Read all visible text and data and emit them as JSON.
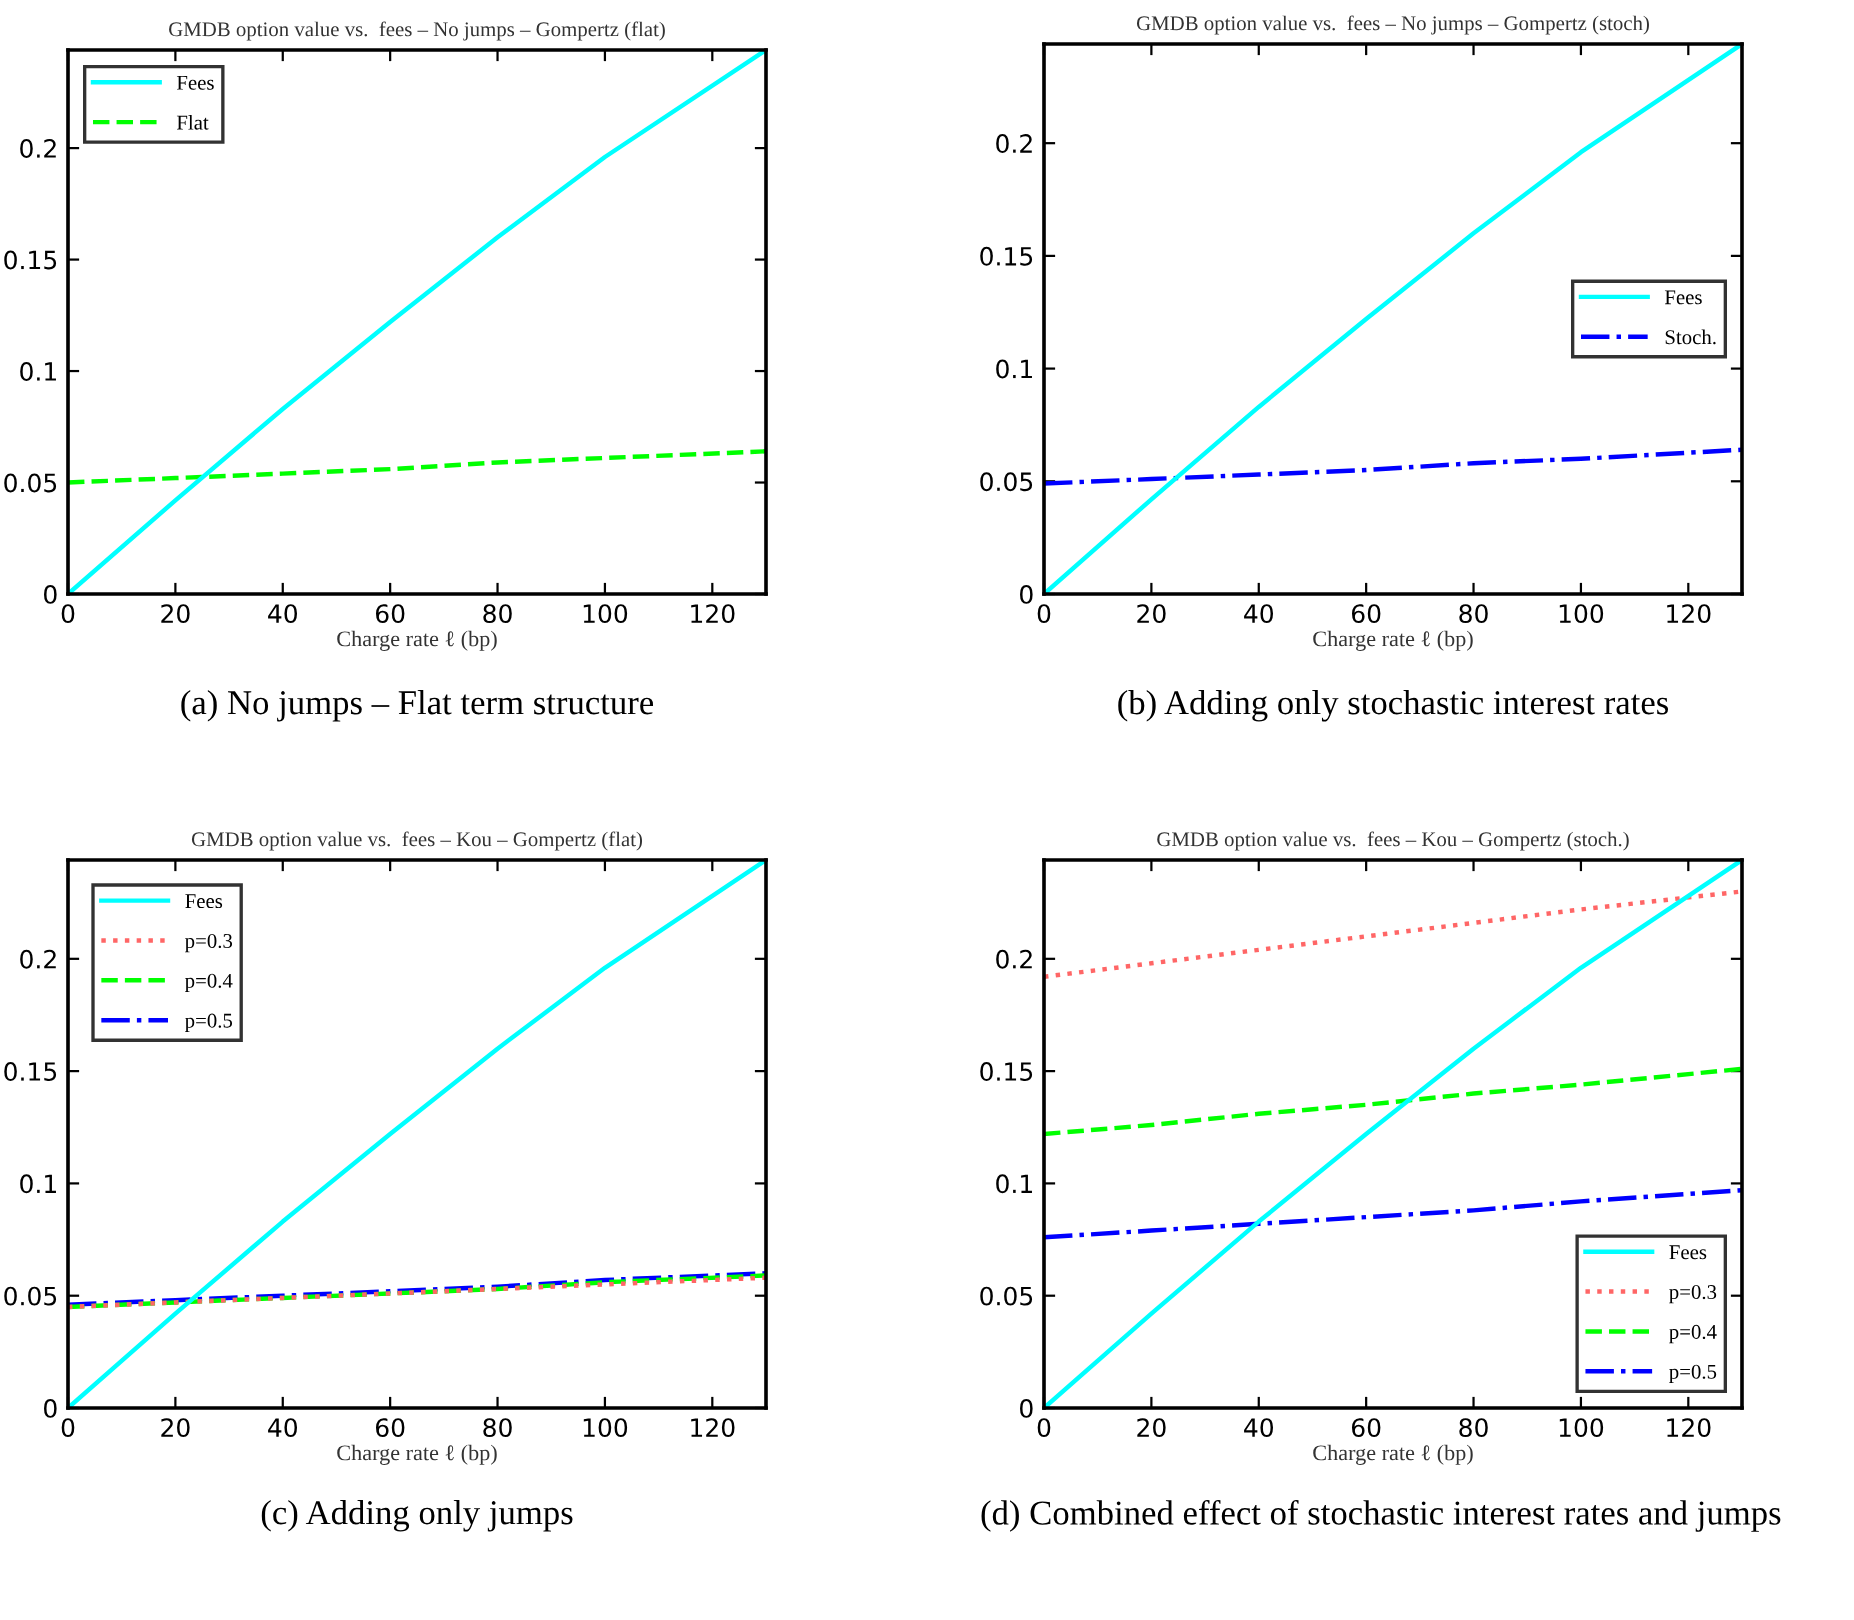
{
  "chart_data": [
    {
      "type": "line",
      "title": "GMDB option value vs.  fees – No jumps – Gompertz (flat)",
      "xlabel": "Charge rate ℓ (bp)",
      "annotations": [
        "(a) No jumps – Flat term structure"
      ],
      "x": [
        0,
        20,
        40,
        60,
        80,
        100,
        130
      ],
      "xlim": [
        0,
        130
      ],
      "ylim": [
        0,
        0.244
      ],
      "xticks": [
        0,
        20,
        40,
        60,
        80,
        100,
        120
      ],
      "yticks": [
        0,
        0.05,
        0.1,
        0.15,
        0.2
      ],
      "legend": "top left",
      "series": [
        {
          "name": "Fees",
          "color": "#00ffff",
          "line_style": "solid",
          "values": [
            0,
            0.042,
            0.083,
            0.122,
            0.16,
            0.196,
            0.244
          ]
        },
        {
          "name": "Flat",
          "color": "#00ff00",
          "line_style": "dashed",
          "values": [
            0.05,
            0.052,
            0.054,
            0.056,
            0.059,
            0.061,
            0.064
          ]
        }
      ]
    },
    {
      "type": "line",
      "title": "GMDB option value vs.  fees – No jumps – Gompertz (stoch)",
      "xlabel": "Charge rate ℓ (bp)",
      "annotations": [
        "(b) Adding only stochastic interest rates"
      ],
      "x": [
        0,
        20,
        40,
        60,
        80,
        100,
        130
      ],
      "xlim": [
        0,
        130
      ],
      "ylim": [
        0,
        0.244
      ],
      "xticks": [
        0,
        20,
        40,
        60,
        80,
        100,
        120
      ],
      "yticks": [
        0,
        0.05,
        0.1,
        0.15,
        0.2
      ],
      "legend": "right",
      "series": [
        {
          "name": "Fees",
          "color": "#00ffff",
          "line_style": "solid",
          "values": [
            0,
            0.042,
            0.083,
            0.122,
            0.16,
            0.196,
            0.244
          ]
        },
        {
          "name": "Stoch.",
          "color": "#0000ff",
          "line_style": "dashdot",
          "values": [
            0.049,
            0.051,
            0.053,
            0.055,
            0.058,
            0.06,
            0.064
          ]
        }
      ]
    },
    {
      "type": "line",
      "title": "GMDB option value vs.  fees – Kou – Gompertz (flat)",
      "xlabel": "Charge rate ℓ (bp)",
      "annotations": [
        "(c) Adding only jumps"
      ],
      "x": [
        0,
        20,
        40,
        60,
        80,
        100,
        130
      ],
      "xlim": [
        0,
        130
      ],
      "ylim": [
        0,
        0.244
      ],
      "xticks": [
        0,
        20,
        40,
        60,
        80,
        100,
        120
      ],
      "yticks": [
        0,
        0.05,
        0.1,
        0.15,
        0.2
      ],
      "legend": "top left",
      "series": [
        {
          "name": "Fees",
          "color": "#00ffff",
          "line_style": "solid",
          "values": [
            0,
            0.042,
            0.083,
            0.122,
            0.16,
            0.196,
            0.244
          ]
        },
        {
          "name": "p=0.3",
          "color": "#ff6666",
          "line_style": "dotted",
          "values": [
            0.045,
            0.047,
            0.049,
            0.051,
            0.053,
            0.055,
            0.058
          ]
        },
        {
          "name": "p=0.4",
          "color": "#00ff00",
          "line_style": "dashed",
          "values": [
            0.045,
            0.047,
            0.049,
            0.051,
            0.053,
            0.056,
            0.059
          ]
        },
        {
          "name": "p=0.5",
          "color": "#0000ff",
          "line_style": "dashdot",
          "values": [
            0.046,
            0.048,
            0.05,
            0.052,
            0.054,
            0.057,
            0.06
          ]
        }
      ]
    },
    {
      "type": "line",
      "title": "GMDB option value vs.  fees – Kou – Gompertz (stoch.)",
      "xlabel": "Charge rate ℓ (bp)",
      "annotations": [
        "(d) Combined effect of stochastic interest rates and jumps"
      ],
      "x": [
        0,
        20,
        40,
        60,
        80,
        100,
        130
      ],
      "xlim": [
        0,
        130
      ],
      "ylim": [
        0,
        0.244
      ],
      "xticks": [
        0,
        20,
        40,
        60,
        80,
        100,
        120
      ],
      "yticks": [
        0,
        0.05,
        0.1,
        0.15,
        0.2
      ],
      "legend": "bottom right",
      "series": [
        {
          "name": "Fees",
          "color": "#00ffff",
          "line_style": "solid",
          "values": [
            0,
            0.042,
            0.083,
            0.122,
            0.16,
            0.196,
            0.244
          ]
        },
        {
          "name": "p=0.3",
          "color": "#ff6666",
          "line_style": "dotted",
          "values": [
            0.192,
            0.198,
            0.204,
            0.21,
            0.216,
            0.222,
            0.23
          ]
        },
        {
          "name": "p=0.4",
          "color": "#00ff00",
          "line_style": "dashed",
          "values": [
            0.122,
            0.126,
            0.131,
            0.135,
            0.14,
            0.144,
            0.151
          ]
        },
        {
          "name": "p=0.5",
          "color": "#0000ff",
          "line_style": "dashdot",
          "values": [
            0.076,
            0.079,
            0.082,
            0.085,
            0.088,
            0.092,
            0.097
          ]
        }
      ]
    }
  ]
}
